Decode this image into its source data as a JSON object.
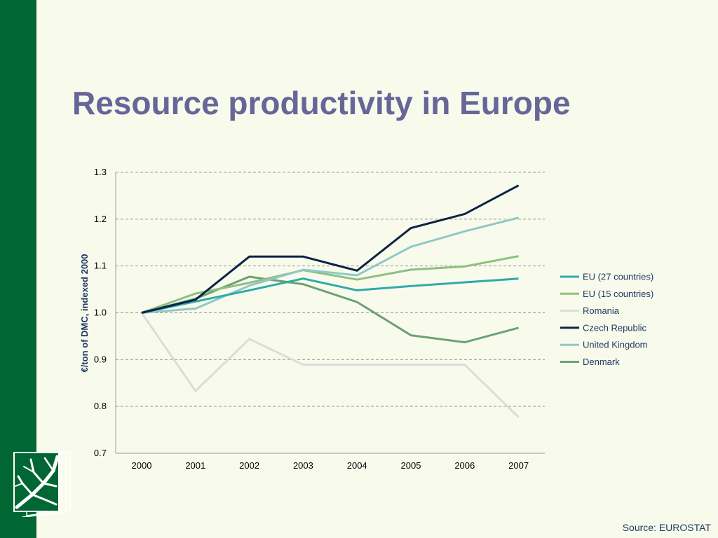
{
  "slide": {
    "title": "Resource productivity in Europe",
    "source": "Source: EUROSTAT"
  },
  "colors": {
    "sidebar": "#006633",
    "background": "#f8fbeb",
    "title": "#666699"
  },
  "icons": {
    "logo": "tree-book-icon"
  },
  "chart_data": {
    "type": "line",
    "title": "",
    "xlabel": "",
    "ylabel": "€/ton of DMC, indexed 2000",
    "x": [
      "2000",
      "2001",
      "2002",
      "2003",
      "2004",
      "2005",
      "2006",
      "2007"
    ],
    "ylim": [
      0.7,
      1.3
    ],
    "yticks": [
      0.7,
      0.8,
      0.9,
      1.0,
      1.1,
      1.2,
      1.3
    ],
    "ytick_labels": [
      "0.7",
      "0.8",
      "0.9",
      "1.0",
      "1.1",
      "1.2",
      "1.3"
    ],
    "grid": true,
    "legend_position": "right",
    "series": [
      {
        "name": "EU (27 countries)",
        "color": "#31a9a9",
        "values": [
          1.0,
          1.024,
          1.048,
          1.073,
          1.048,
          1.057,
          1.065,
          1.073
        ]
      },
      {
        "name": "EU (15 countries)",
        "color": "#8fbf82",
        "values": [
          1.0,
          1.041,
          1.064,
          1.091,
          1.071,
          1.092,
          1.099,
          1.121
        ]
      },
      {
        "name": "Romania",
        "color": "#dcdcdc",
        "values": [
          1.0,
          0.833,
          0.944,
          0.889,
          0.889,
          0.889,
          0.889,
          0.777
        ]
      },
      {
        "name": "Czech Republic",
        "color": "#0b2346",
        "values": [
          1.0,
          1.028,
          1.12,
          1.12,
          1.09,
          1.181,
          1.211,
          1.272
        ]
      },
      {
        "name": "United Kingdom",
        "color": "#8fc8c8",
        "values": [
          1.0,
          1.009,
          1.058,
          1.092,
          1.08,
          1.141,
          1.174,
          1.203
        ]
      },
      {
        "name": "Denmark",
        "color": "#6ea075",
        "values": [
          1.0,
          1.03,
          1.077,
          1.061,
          1.023,
          0.952,
          0.937,
          0.968
        ]
      }
    ]
  }
}
